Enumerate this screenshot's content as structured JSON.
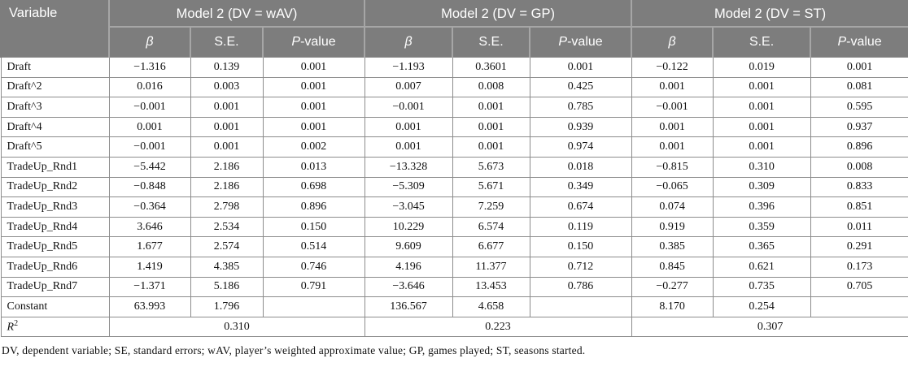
{
  "table": {
    "variable_header": "Variable",
    "group_headers": [
      "Model 2 (DV = wAV)",
      "Model 2 (DV = GP)",
      "Model 2 (DV = ST)"
    ],
    "beta_label": "β",
    "se_label": "S.E.",
    "p_label_italic": "P",
    "p_label_rest": "-value",
    "rows": [
      {
        "variable": "Draft",
        "values": [
          "−1.316",
          "0.139",
          "0.001",
          "−1.193",
          "0.3601",
          "0.001",
          "−0.122",
          "0.019",
          "0.001"
        ]
      },
      {
        "variable": "Draft^2",
        "values": [
          "0.016",
          "0.003",
          "0.001",
          "0.007",
          "0.008",
          "0.425",
          "0.001",
          "0.001",
          "0.081"
        ]
      },
      {
        "variable": "Draft^3",
        "values": [
          "−0.001",
          "0.001",
          "0.001",
          "−0.001",
          "0.001",
          "0.785",
          "−0.001",
          "0.001",
          "0.595"
        ]
      },
      {
        "variable": "Draft^4",
        "values": [
          "0.001",
          "0.001",
          "0.001",
          "0.001",
          "0.001",
          "0.939",
          "0.001",
          "0.001",
          "0.937"
        ]
      },
      {
        "variable": "Draft^5",
        "values": [
          "−0.001",
          "0.001",
          "0.002",
          "0.001",
          "0.001",
          "0.974",
          "0.001",
          "0.001",
          "0.896"
        ]
      },
      {
        "variable": "TradeUp_Rnd1",
        "values": [
          "−5.442",
          "2.186",
          "0.013",
          "−13.328",
          "5.673",
          "0.018",
          "−0.815",
          "0.310",
          "0.008"
        ]
      },
      {
        "variable": "TradeUp_Rnd2",
        "values": [
          "−0.848",
          "2.186",
          "0.698",
          "−5.309",
          "5.671",
          "0.349",
          "−0.065",
          "0.309",
          "0.833"
        ]
      },
      {
        "variable": "TradeUp_Rnd3",
        "values": [
          "−0.364",
          "2.798",
          "0.896",
          "−3.045",
          "7.259",
          "0.674",
          "0.074",
          "0.396",
          "0.851"
        ]
      },
      {
        "variable": "TradeUp_Rnd4",
        "values": [
          "3.646",
          "2.534",
          "0.150",
          "10.229",
          "6.574",
          "0.119",
          "0.919",
          "0.359",
          "0.011"
        ]
      },
      {
        "variable": "TradeUp_Rnd5",
        "values": [
          "1.677",
          "2.574",
          "0.514",
          "9.609",
          "6.677",
          "0.150",
          "0.385",
          "0.365",
          "0.291"
        ]
      },
      {
        "variable": "TradeUp_Rnd6",
        "values": [
          "1.419",
          "4.385",
          "0.746",
          "4.196",
          "11.377",
          "0.712",
          "0.845",
          "0.621",
          "0.173"
        ]
      },
      {
        "variable": "TradeUp_Rnd7",
        "values": [
          "−1.371",
          "5.186",
          "0.791",
          "−3.646",
          "13.453",
          "0.786",
          "−0.277",
          "0.735",
          "0.705"
        ]
      },
      {
        "variable": "Constant",
        "values": [
          "63.993",
          "1.796",
          "",
          "136.567",
          "4.658",
          "",
          "8.170",
          "0.254",
          ""
        ]
      }
    ],
    "r_squared": {
      "label_base": "R",
      "label_sup": "2",
      "values": [
        "0.310",
        "0.223",
        "0.307"
      ]
    }
  },
  "footnote": "DV, dependent variable; SE, standard errors; wAV, player’s weighted approximate value; GP, games played; ST, seasons started."
}
